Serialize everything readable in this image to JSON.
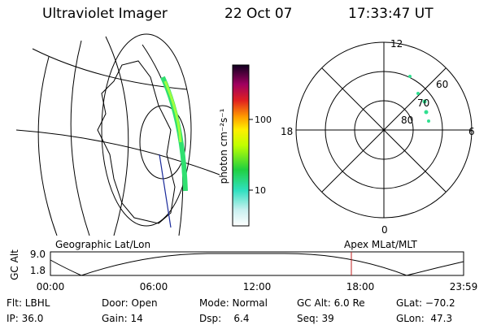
{
  "header": {
    "title": "Ultraviolet Imager",
    "date": "22 Oct 07",
    "time": "17:33:47 UT"
  },
  "colorbar": {
    "label": "photon cm⁻²s⁻¹",
    "ticks": [
      "100",
      "10"
    ]
  },
  "polar_plot": {
    "mlt_labels": [
      "12",
      "18",
      "6",
      "0"
    ],
    "lat_labels": [
      "60",
      "70",
      "80"
    ]
  },
  "altitude_plot": {
    "y_label": "GC Alt",
    "y_ticks": [
      "9.0",
      "1.8"
    ],
    "left_title": "Geographic Lat/Lon",
    "right_title": "Apex MLat/MLT",
    "x_ticks": [
      "00:00",
      "06:00",
      "12:00",
      "18:00",
      "23:59"
    ]
  },
  "info": {
    "rows": [
      [
        "Flt: LBHL",
        "Door: Open",
        "Mode: Normal",
        "GC Alt: 6.0 Re",
        "GLat: −70.2"
      ],
      [
        "IP: 36.0",
        "Gain: 14",
        "Dsp:    6.4",
        "Seq: 39",
        "GLon:  47.3"
      ]
    ]
  }
}
